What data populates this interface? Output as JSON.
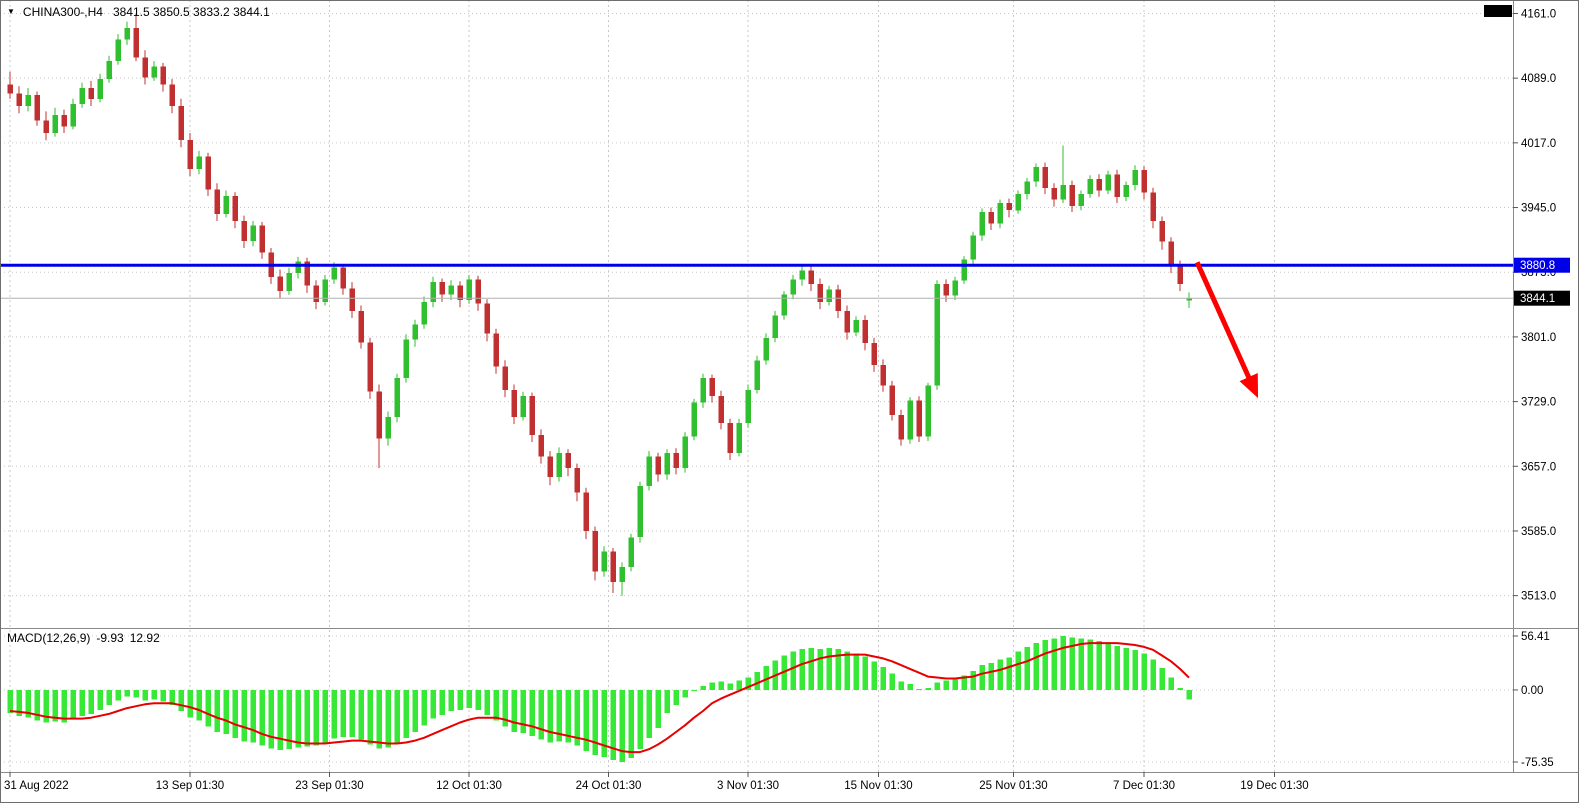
{
  "header": {
    "expander": "▼",
    "symbol_period": "CHINA300-,H4",
    "ohlc_text": "3841.5 3850.5 3833.2 3844.1"
  },
  "colors": {
    "candle_up": "#2FBF2F",
    "candle_down": "#C03030",
    "macd_histogram": "#37E837",
    "macd_signal": "#E80000",
    "grid": "#C8C8C8",
    "current_price_line": "#B0B0B0",
    "hline": "#0000E8",
    "arrow": "#FF0000",
    "tag_text": "#FFFFFF"
  },
  "chart_data": {
    "type": "candlestick",
    "symbol": "CHINA300-",
    "timeframe": "H4",
    "last_ohlc": {
      "open": 3841.5,
      "high": 3850.5,
      "low": 3833.2,
      "close": 3844.1
    },
    "current_price": 3844.1,
    "current_price_label": "3844.1",
    "horizontal_line": {
      "price": 3880.8,
      "label": "3880.8",
      "color": "#0000E8"
    },
    "trend_arrow": {
      "from": {
        "bar": 131.9,
        "price": 3884
      },
      "to": {
        "bar": 138.4,
        "price": 3739
      },
      "color": "#FF0000"
    },
    "price_axis": {
      "ticks": [
        "4161.0",
        "4089.0",
        "4017.0",
        "3945.0",
        "3873.0",
        "3801.0",
        "3729.0",
        "3657.0",
        "3585.0",
        "3513.0"
      ],
      "ylim": [
        3477,
        4176
      ]
    },
    "time_axis": {
      "ticks": [
        {
          "pos": 0,
          "label": "31 Aug 2022"
        },
        {
          "pos": 20,
          "label": "13 Sep 01:30"
        },
        {
          "pos": 35.5,
          "label": "23 Sep 01:30"
        },
        {
          "pos": 51,
          "label": "12 Oct 01:30"
        },
        {
          "pos": 66.5,
          "label": "24 Oct 01:30"
        },
        {
          "pos": 82,
          "label": "3 Nov 01:30"
        },
        {
          "pos": 96.5,
          "label": "15 Nov 01:30"
        },
        {
          "pos": 111.5,
          "label": "25 Nov 01:30"
        },
        {
          "pos": 126,
          "label": "7 Dec 01:30"
        },
        {
          "pos": 140.5,
          "label": "19 Dec 01:30"
        }
      ]
    },
    "candles": [
      [
        4082,
        4096,
        4066,
        4072
      ],
      [
        4072,
        4080,
        4050,
        4058
      ],
      [
        4058,
        4078,
        4052,
        4070
      ],
      [
        4070,
        4074,
        4036,
        4042
      ],
      [
        4042,
        4052,
        4020,
        4028
      ],
      [
        4028,
        4056,
        4024,
        4048
      ],
      [
        4048,
        4054,
        4028,
        4035
      ],
      [
        4035,
        4066,
        4032,
        4060
      ],
      [
        4060,
        4084,
        4056,
        4078
      ],
      [
        4078,
        4086,
        4058,
        4066
      ],
      [
        4066,
        4094,
        4062,
        4088
      ],
      [
        4088,
        4114,
        4084,
        4108
      ],
      [
        4108,
        4138,
        4104,
        4132
      ],
      [
        4132,
        4152,
        4126,
        4145
      ],
      [
        4145,
        4161,
        4108,
        4112
      ],
      [
        4112,
        4120,
        4082,
        4090
      ],
      [
        4090,
        4108,
        4086,
        4102
      ],
      [
        4102,
        4106,
        4074,
        4082
      ],
      [
        4082,
        4088,
        4050,
        4058
      ],
      [
        4058,
        4066,
        4012,
        4020
      ],
      [
        4020,
        4028,
        3980,
        3988
      ],
      [
        3988,
        4008,
        3982,
        4002
      ],
      [
        4002,
        4006,
        3958,
        3965
      ],
      [
        3965,
        3972,
        3930,
        3938
      ],
      [
        3938,
        3964,
        3934,
        3958
      ],
      [
        3958,
        3962,
        3922,
        3930
      ],
      [
        3930,
        3936,
        3900,
        3908
      ],
      [
        3908,
        3930,
        3902,
        3925
      ],
      [
        3925,
        3929,
        3888,
        3895
      ],
      [
        3895,
        3900,
        3860,
        3868
      ],
      [
        3868,
        3876,
        3844,
        3852
      ],
      [
        3852,
        3878,
        3848,
        3872
      ],
      [
        3872,
        3890,
        3866,
        3885
      ],
      [
        3885,
        3889,
        3850,
        3858
      ],
      [
        3858,
        3864,
        3832,
        3840
      ],
      [
        3840,
        3870,
        3836,
        3865
      ],
      [
        3865,
        3884,
        3860,
        3878
      ],
      [
        3878,
        3882,
        3848,
        3855
      ],
      [
        3855,
        3862,
        3822,
        3830
      ],
      [
        3830,
        3836,
        3788,
        3795
      ],
      [
        3795,
        3800,
        3732,
        3740
      ],
      [
        3740,
        3748,
        3655,
        3688
      ],
      [
        3688,
        3718,
        3680,
        3712
      ],
      [
        3712,
        3760,
        3706,
        3755
      ],
      [
        3755,
        3804,
        3750,
        3798
      ],
      [
        3798,
        3820,
        3790,
        3815
      ],
      [
        3815,
        3846,
        3810,
        3840
      ],
      [
        3840,
        3868,
        3834,
        3862
      ],
      [
        3862,
        3866,
        3840,
        3848
      ],
      [
        3848,
        3864,
        3842,
        3858
      ],
      [
        3858,
        3863,
        3834,
        3842
      ],
      [
        3842,
        3870,
        3838,
        3865
      ],
      [
        3865,
        3869,
        3830,
        3838
      ],
      [
        3838,
        3843,
        3796,
        3805
      ],
      [
        3805,
        3810,
        3760,
        3768
      ],
      [
        3768,
        3775,
        3734,
        3742
      ],
      [
        3742,
        3748,
        3704,
        3712
      ],
      [
        3712,
        3740,
        3708,
        3735
      ],
      [
        3735,
        3739,
        3684,
        3692
      ],
      [
        3692,
        3698,
        3660,
        3668
      ],
      [
        3668,
        3674,
        3636,
        3645
      ],
      [
        3645,
        3678,
        3640,
        3672
      ],
      [
        3672,
        3676,
        3646,
        3655
      ],
      [
        3655,
        3660,
        3618,
        3628
      ],
      [
        3628,
        3633,
        3576,
        3585
      ],
      [
        3585,
        3590,
        3530,
        3540
      ],
      [
        3540,
        3568,
        3534,
        3562
      ],
      [
        3562,
        3566,
        3516,
        3528
      ],
      [
        3528,
        3550,
        3513,
        3545
      ],
      [
        3545,
        3582,
        3540,
        3578
      ],
      [
        3578,
        3640,
        3572,
        3635
      ],
      [
        3635,
        3674,
        3630,
        3668
      ],
      [
        3668,
        3672,
        3640,
        3648
      ],
      [
        3648,
        3676,
        3642,
        3672
      ],
      [
        3672,
        3677,
        3648,
        3655
      ],
      [
        3655,
        3695,
        3650,
        3690
      ],
      [
        3690,
        3732,
        3686,
        3728
      ],
      [
        3728,
        3760,
        3722,
        3755
      ],
      [
        3755,
        3759,
        3728,
        3735
      ],
      [
        3735,
        3741,
        3698,
        3705
      ],
      [
        3705,
        3710,
        3664,
        3672
      ],
      [
        3672,
        3710,
        3668,
        3705
      ],
      [
        3705,
        3748,
        3700,
        3742
      ],
      [
        3742,
        3780,
        3738,
        3775
      ],
      [
        3775,
        3805,
        3770,
        3800
      ],
      [
        3800,
        3830,
        3795,
        3825
      ],
      [
        3825,
        3852,
        3820,
        3848
      ],
      [
        3848,
        3870,
        3843,
        3865
      ],
      [
        3865,
        3880,
        3858,
        3875
      ],
      [
        3875,
        3881,
        3852,
        3860
      ],
      [
        3860,
        3866,
        3832,
        3840
      ],
      [
        3840,
        3858,
        3836,
        3854
      ],
      [
        3854,
        3859,
        3822,
        3830
      ],
      [
        3830,
        3836,
        3798,
        3806
      ],
      [
        3806,
        3824,
        3802,
        3820
      ],
      [
        3820,
        3825,
        3786,
        3794
      ],
      [
        3794,
        3800,
        3762,
        3770
      ],
      [
        3770,
        3776,
        3740,
        3747
      ],
      [
        3747,
        3752,
        3708,
        3714
      ],
      [
        3714,
        3720,
        3680,
        3687
      ],
      [
        3687,
        3734,
        3682,
        3730
      ],
      [
        3730,
        3735,
        3684,
        3690
      ],
      [
        3690,
        3750,
        3685,
        3747
      ],
      [
        3747,
        3864,
        3742,
        3860
      ],
      [
        3860,
        3865,
        3840,
        3847
      ],
      [
        3847,
        3868,
        3842,
        3864
      ],
      [
        3864,
        3891,
        3860,
        3887
      ],
      [
        3887,
        3918,
        3882,
        3914
      ],
      [
        3914,
        3944,
        3908,
        3940
      ],
      [
        3940,
        3945,
        3920,
        3927
      ],
      [
        3927,
        3954,
        3922,
        3950
      ],
      [
        3950,
        3955,
        3934,
        3942
      ],
      [
        3942,
        3964,
        3938,
        3960
      ],
      [
        3960,
        3978,
        3954,
        3974
      ],
      [
        3974,
        3994,
        3968,
        3990
      ],
      [
        3990,
        3995,
        3960,
        3967
      ],
      [
        3967,
        3972,
        3946,
        3954
      ],
      [
        3954,
        4014,
        3950,
        3970
      ],
      [
        3970,
        3975,
        3940,
        3947
      ],
      [
        3947,
        3964,
        3942,
        3960
      ],
      [
        3960,
        3981,
        3956,
        3977
      ],
      [
        3977,
        3982,
        3957,
        3964
      ],
      [
        3964,
        3986,
        3960,
        3982
      ],
      [
        3982,
        3987,
        3950,
        3957
      ],
      [
        3957,
        3974,
        3952,
        3970
      ],
      [
        3970,
        3992,
        3964,
        3987
      ],
      [
        3987,
        3991,
        3954,
        3962
      ],
      [
        3962,
        3967,
        3922,
        3930
      ],
      [
        3930,
        3935,
        3898,
        3907
      ],
      [
        3907,
        3912,
        3872,
        3880
      ],
      [
        3880,
        3886,
        3852,
        3860
      ],
      [
        3841.5,
        3850.5,
        3833.2,
        3844.1
      ]
    ],
    "macd": {
      "name": "MACD(12,26,9)",
      "main_value": "-9.93",
      "signal_value": "12.92",
      "axis_ticks": [
        "56.41",
        "0.00",
        "-75.35"
      ],
      "ylim": [
        -75.35,
        56.41
      ],
      "main": [
        -24,
        -27,
        -29,
        -32,
        -34,
        -33,
        -34,
        -31,
        -27,
        -25,
        -21,
        -16,
        -11,
        -7,
        -8,
        -11,
        -10,
        -12,
        -16,
        -22,
        -29,
        -32,
        -38,
        -44,
        -46,
        -50,
        -54,
        -55,
        -58,
        -61,
        -63,
        -62,
        -60,
        -59,
        -58,
        -55,
        -51,
        -49,
        -49,
        -52,
        -57,
        -61,
        -60,
        -56,
        -50,
        -44,
        -37,
        -30,
        -26,
        -22,
        -21,
        -19,
        -21,
        -26,
        -32,
        -38,
        -44,
        -45,
        -48,
        -52,
        -55,
        -54,
        -55,
        -58,
        -64,
        -68,
        -70,
        -73,
        -75.35,
        -71,
        -62,
        -50,
        -40,
        -24,
        -16,
        -8,
        -1,
        4,
        8,
        9,
        7,
        10,
        13,
        19,
        25,
        31,
        36,
        40,
        43,
        44,
        43,
        44,
        43,
        40,
        38,
        35,
        30,
        24,
        17,
        9,
        6,
        1,
        2,
        8,
        10,
        12,
        15,
        20,
        26,
        28,
        32,
        34,
        40,
        45,
        49,
        52,
        54,
        56.41,
        55,
        54,
        53,
        51,
        49,
        46,
        44,
        42,
        38,
        32,
        23,
        13,
        2,
        -9.93
      ],
      "signal": [
        -22,
        -23,
        -24,
        -26,
        -28,
        -29,
        -30,
        -30,
        -30,
        -29,
        -27,
        -25,
        -22,
        -19,
        -17,
        -15,
        -14,
        -14,
        -14,
        -16,
        -18,
        -21,
        -25,
        -29,
        -32,
        -36,
        -39,
        -42,
        -46,
        -49,
        -51,
        -53,
        -55,
        -56,
        -56,
        -56,
        -55,
        -54,
        -53,
        -53,
        -54,
        -55,
        -56,
        -56,
        -55,
        -53,
        -50,
        -46,
        -42,
        -38,
        -34,
        -31,
        -29,
        -29,
        -29,
        -31,
        -34,
        -36,
        -38,
        -41,
        -44,
        -46,
        -48,
        -50,
        -52,
        -55,
        -58,
        -61,
        -64,
        -65,
        -65,
        -62,
        -57,
        -51,
        -44,
        -37,
        -29,
        -22,
        -14,
        -9,
        -5,
        -1,
        3,
        7,
        11,
        15,
        19,
        23,
        27,
        30,
        33,
        35,
        36,
        37,
        37,
        37,
        35,
        33,
        30,
        26,
        22,
        18,
        14,
        13,
        12,
        12,
        13,
        14,
        17,
        19,
        21,
        24,
        27,
        30,
        34,
        38,
        41,
        44,
        46,
        48,
        49,
        49,
        49,
        49,
        48,
        47,
        45,
        42,
        36,
        30,
        22,
        12.92
      ]
    }
  }
}
